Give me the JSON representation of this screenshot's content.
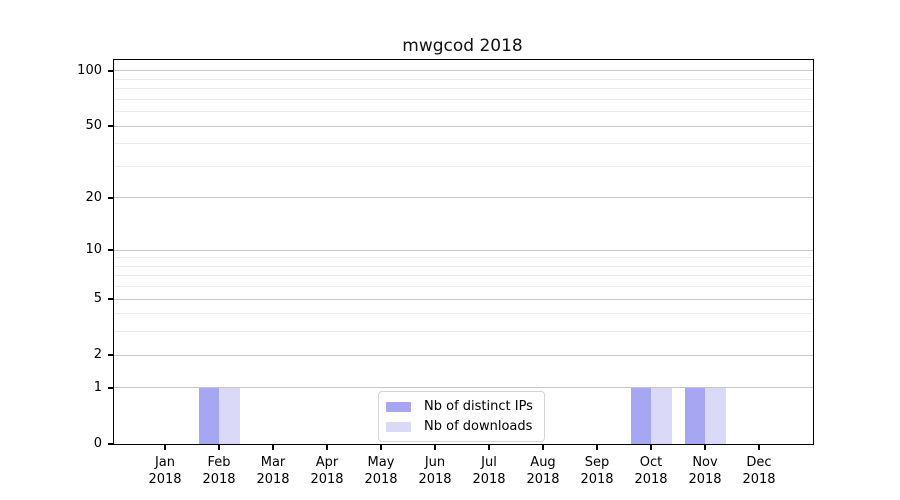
{
  "chart_data": {
    "type": "bar",
    "title": "mwgcod 2018",
    "months": [
      "Jan",
      "Feb",
      "Mar",
      "Apr",
      "May",
      "Jun",
      "Jul",
      "Aug",
      "Sep",
      "Oct",
      "Nov",
      "Dec"
    ],
    "year": "2018",
    "series": [
      {
        "name": "Nb of distinct IPs",
        "color": "#a6a6f2",
        "values": [
          0,
          1,
          0,
          0,
          0,
          0,
          0,
          0,
          0,
          1,
          1,
          0
        ]
      },
      {
        "name": "Nb of downloads",
        "color": "#dadaf8",
        "values": [
          0,
          1,
          0,
          0,
          0,
          0,
          0,
          0,
          0,
          1,
          1,
          0
        ]
      }
    ],
    "y_ticks": [
      0,
      1,
      2,
      5,
      10,
      20,
      50,
      100
    ],
    "y_minor_ticks": [
      3,
      4,
      6,
      7,
      8,
      9,
      30,
      40,
      60,
      70,
      80,
      90
    ],
    "y_scale": "log10(value+1)",
    "ylim": [
      0,
      114
    ],
    "xlabel": "",
    "ylabel": "",
    "grid": true,
    "legend_position": "lower center",
    "colors": {
      "axis": "#000000",
      "major_gridline": "#c6c6c6",
      "minor_gridline": "#ebebeb",
      "background": "#ffffff"
    }
  }
}
